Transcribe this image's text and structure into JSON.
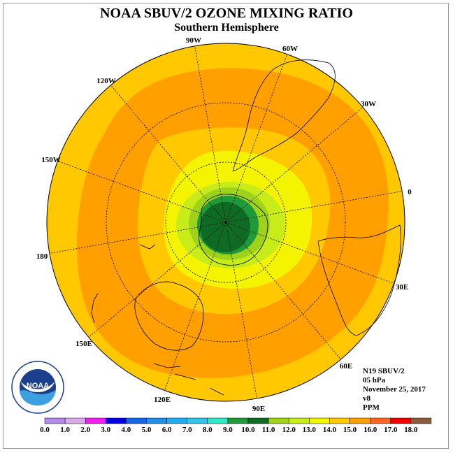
{
  "title": "NOAA SBUV/2 OZONE MIXING RATIO",
  "subtitle": "Southern Hemisphere",
  "info": {
    "satellite": "N19 SBUV/2",
    "level": "05 hPa",
    "date": "November 25, 2017",
    "version": "v8",
    "units": "PPM"
  },
  "logo_text": "NOAA",
  "longitude_labels": [
    "90W",
    "60W",
    "30W",
    "0",
    "30E",
    "60E",
    "90E",
    "120E",
    "150E",
    "180",
    "150W",
    "120W"
  ],
  "colorbar": {
    "labels": [
      "0.0",
      "1.0",
      "2.0",
      "3.0",
      "4.0",
      "5.0",
      "6.0",
      "7.0",
      "8.0",
      "9.0",
      "10.0",
      "11.0",
      "12.0",
      "13.0",
      "14.0",
      "15.0",
      "16.0",
      "17.0",
      "18.0"
    ],
    "colors": [
      "#b28aea",
      "#d9a9e8",
      "#f21ef0",
      "#0000e6",
      "#1565e8",
      "#1e90e8",
      "#20aef0",
      "#33c4ea",
      "#2ee8c8",
      "#1f9a3a",
      "#0d6b24",
      "#9ed31a",
      "#c8ec1a",
      "#f4f400",
      "#ffc800",
      "#ffa000",
      "#ff6420",
      "#f00000",
      "#8c5a3c"
    ]
  },
  "map_colors": {
    "outer_band": "#ffc800",
    "middle_band": "#ffa000",
    "inner_yellow": "#f4f400",
    "light_green": "#c8ec1a",
    "green": "#9ed31a",
    "dark_green": "#1f9a3a",
    "darkest_green": "#0d6b24"
  }
}
